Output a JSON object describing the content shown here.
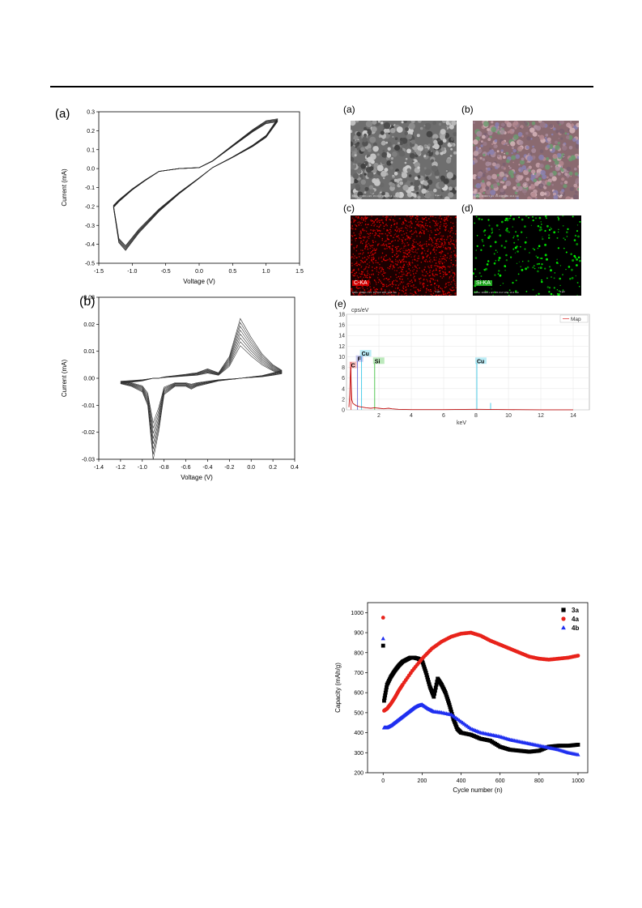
{
  "figure_a": {
    "label": "(a)",
    "chart_data": {
      "type": "line",
      "xlabel": "Voltage (V)",
      "ylabel": "Current (mA)",
      "xlim": [
        -1.5,
        1.5
      ],
      "ylim": [
        -0.5,
        0.3
      ],
      "xticks": [
        "-1.5",
        "-1.0",
        "-0.5",
        "0.0",
        "0.5",
        "1.0",
        "1.5"
      ],
      "yticks": [
        "0.3",
        "0.2",
        "0.1",
        "0.0",
        "-0.1",
        "-0.2",
        "-0.3",
        "-0.4",
        "-0.5"
      ],
      "cycles": 5,
      "anodic_x": [
        -1.28,
        -1.2,
        -1.0,
        -0.8,
        -0.6,
        -0.3,
        0.0,
        0.2,
        0.5,
        0.8,
        1.0,
        1.17
      ],
      "anodic_y": [
        -0.2,
        -0.17,
        -0.11,
        -0.06,
        -0.015,
        0.0,
        0.005,
        0.04,
        0.12,
        0.2,
        0.245,
        0.255
      ],
      "cathodic_x": [
        1.17,
        1.0,
        0.8,
        0.5,
        0.2,
        0.0,
        -0.3,
        -0.6,
        -0.9,
        -1.1,
        -1.2,
        -1.28
      ],
      "cathodic_y": [
        0.255,
        0.17,
        0.12,
        0.06,
        0.005,
        -0.05,
        -0.13,
        -0.22,
        -0.33,
        -0.42,
        -0.38,
        -0.2
      ]
    }
  },
  "figure_b": {
    "label": "(b)",
    "chart_data": {
      "type": "line",
      "xlabel": "Voltage (V)",
      "ylabel": "Current (mA)",
      "xlim": [
        -1.4,
        0.4
      ],
      "ylim": [
        -0.03,
        0.03
      ],
      "xticks": [
        "-1.4",
        "-1.2",
        "-1.0",
        "-0.8",
        "-0.6",
        "-0.4",
        "-0.2",
        "0.0",
        "0.2",
        "0.4"
      ],
      "yticks": [
        "0.03",
        "0.02",
        "0.01",
        "0.00",
        "-0.01",
        "-0.02",
        "-0.03"
      ],
      "cycles": 8,
      "x": [
        -1.2,
        -1.1,
        -1.0,
        -0.95,
        -0.9,
        -0.85,
        -0.8,
        -0.7,
        -0.6,
        -0.55,
        -0.5,
        -0.4,
        -0.3,
        -0.2,
        -0.15,
        -0.1,
        0.0,
        0.1,
        0.2,
        0.28
      ],
      "y_reduction": [
        -0.002,
        -0.003,
        -0.005,
        -0.01,
        -0.03,
        -0.02,
        -0.006,
        -0.003,
        -0.003,
        -0.004,
        -0.003,
        -0.002,
        -0.001,
        -0.0005,
        -0.0003,
        0.0,
        0.0005,
        0.001,
        0.002,
        0.003
      ],
      "y_oxidation": [
        -0.002,
        -0.0015,
        -0.001,
        -0.0005,
        0.0,
        0.0,
        0.0005,
        0.001,
        0.0015,
        0.0018,
        0.002,
        0.0035,
        0.002,
        0.008,
        0.015,
        0.022,
        0.015,
        0.009,
        0.005,
        0.003
      ]
    }
  },
  "micrographs": {
    "a": {
      "label": "(a)",
      "scale": "1 µm",
      "info": "MAG: 10000 x  HV: 15.0 kV  WD: 10.4 mm"
    },
    "b": {
      "label": "(b)",
      "scale": "1 µm",
      "info": "MAG: 10000 x  HV: 15.0 kV  WD: 10.4 mm"
    },
    "c": {
      "label": "(c)",
      "tag": "C-KA",
      "scale": "1 µm",
      "info": "MAG: 10000 x  HV: 15.0 kV  WD: 10.4 mm"
    },
    "d": {
      "label": "(d)",
      "tag": "Si-KA",
      "scale": "1 µm",
      "info": "MAG: 10000 x  HV: 15.0 kV  WD: 10.4 mm"
    },
    "colors": {
      "carbon": "#d40000",
      "silicon": "#22cc22"
    }
  },
  "figure_e": {
    "label": "(e)",
    "chart_data": {
      "type": "line",
      "ylabel": "cps/eV",
      "xlabel": "keV",
      "xlim": [
        0,
        15
      ],
      "ylim": [
        0,
        18
      ],
      "xticks": [
        "2",
        "4",
        "6",
        "8",
        "10",
        "12",
        "14"
      ],
      "yticks": [
        "18",
        "16",
        "14",
        "12",
        "10",
        "8",
        "6",
        "4",
        "2",
        "0"
      ],
      "legend": "Map",
      "peaks": [
        {
          "x": 0.28,
          "y": 8,
          "label": "C",
          "color": "#e04040"
        },
        {
          "x": 0.68,
          "y": 9.2,
          "label": "F",
          "color": "#6a6ad6"
        },
        {
          "x": 0.93,
          "y": 10.2,
          "label": "Cu",
          "color": "#3cc8e6"
        },
        {
          "x": 1.74,
          "y": 8.8,
          "label": "Si",
          "color": "#40c040"
        },
        {
          "x": 8.05,
          "y": 8.8,
          "label": "Cu",
          "color": "#3cc8e6"
        }
      ],
      "lines": [
        {
          "x": 0.28,
          "y": 9,
          "color": "#e04040"
        },
        {
          "x": 0.68,
          "y": 9.2,
          "color": "#6a6ad6"
        },
        {
          "x": 0.93,
          "y": 10,
          "color": "#3cc8e6"
        },
        {
          "x": 1.74,
          "y": 8.8,
          "color": "#40c040"
        },
        {
          "x": 8.05,
          "y": 8.8,
          "color": "#3cc8e6"
        },
        {
          "x": 8.9,
          "y": 1.3,
          "color": "#3cc8e6"
        }
      ],
      "spectrum_x": [
        0.15,
        0.2,
        0.25,
        0.28,
        0.32,
        0.4,
        0.6,
        0.8,
        1.0,
        1.2,
        1.5,
        1.74,
        2.0,
        2.3,
        2.6,
        2.8,
        3.2,
        4,
        6,
        8,
        10,
        12,
        14
      ],
      "spectrum_y": [
        0.5,
        3,
        8,
        6,
        2,
        1.2,
        0.8,
        0.6,
        0.5,
        0.4,
        0.3,
        0.4,
        0.3,
        0.2,
        0.3,
        0.2,
        0.1,
        0.05,
        0.05,
        0.1,
        0.05,
        0.02,
        0.02
      ]
    }
  },
  "figure_cap": {
    "chart_data": {
      "type": "scatter",
      "xlabel": "Cycle number (n)",
      "ylabel": "Capacity (mAh/g)",
      "xlim": [
        -80,
        1050
      ],
      "ylim": [
        200,
        1050
      ],
      "xticks": [
        "0",
        "200",
        "400",
        "600",
        "800",
        "1000"
      ],
      "yticks": [
        "1000",
        "900",
        "800",
        "700",
        "600",
        "500",
        "400",
        "300",
        "200"
      ],
      "series": [
        {
          "name": "3a",
          "color": "#000000",
          "marker": "square",
          "first": 835,
          "x": [
            5,
            20,
            40,
            60,
            80,
            100,
            120,
            140,
            160,
            180,
            200,
            220,
            240,
            260,
            280,
            300,
            320,
            340,
            360,
            380,
            400,
            450,
            500,
            550,
            600,
            650,
            700,
            750,
            800,
            850,
            900,
            950,
            1000
          ],
          "y": [
            560,
            640,
            680,
            710,
            735,
            755,
            765,
            775,
            775,
            770,
            760,
            700,
            630,
            580,
            670,
            640,
            600,
            540,
            470,
            420,
            400,
            390,
            370,
            360,
            330,
            315,
            310,
            305,
            310,
            330,
            335,
            335,
            340
          ]
        },
        {
          "name": "4a",
          "color": "#e8231b",
          "marker": "circle",
          "first": 975,
          "x": [
            5,
            20,
            40,
            60,
            80,
            100,
            150,
            200,
            250,
            300,
            350,
            400,
            450,
            500,
            550,
            600,
            650,
            700,
            750,
            800,
            850,
            900,
            950,
            1000
          ],
          "y": [
            510,
            520,
            545,
            575,
            610,
            640,
            710,
            770,
            820,
            855,
            880,
            895,
            900,
            885,
            860,
            840,
            820,
            800,
            780,
            770,
            765,
            770,
            775,
            785
          ]
        },
        {
          "name": "4b",
          "color": "#1f2ff0",
          "marker": "triangle",
          "first": 870,
          "x": [
            5,
            20,
            40,
            60,
            80,
            100,
            120,
            140,
            160,
            180,
            200,
            230,
            260,
            300,
            350,
            400,
            450,
            500,
            550,
            600,
            650,
            700,
            750,
            800,
            850,
            900,
            950,
            1000
          ],
          "y": [
            425,
            425,
            435,
            450,
            465,
            480,
            495,
            510,
            525,
            535,
            540,
            520,
            505,
            500,
            490,
            455,
            420,
            400,
            390,
            380,
            365,
            355,
            345,
            335,
            325,
            315,
            300,
            290
          ]
        }
      ]
    }
  }
}
